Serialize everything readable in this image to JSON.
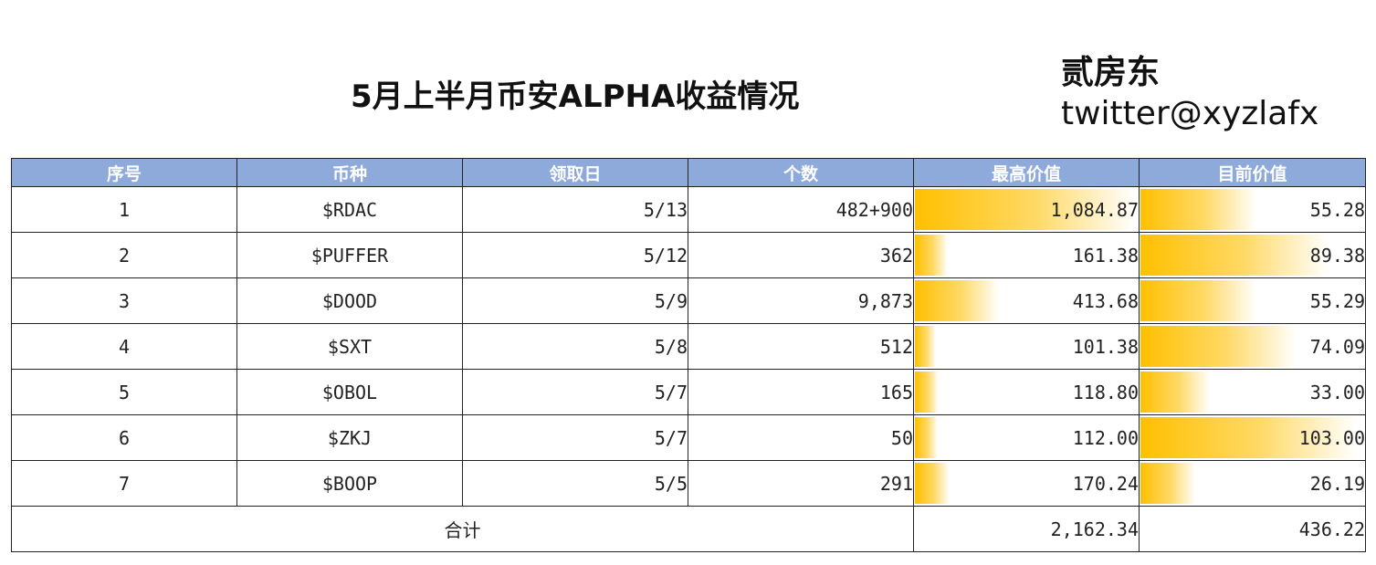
{
  "title": "5月上半月币安ALPHA收益情况",
  "author": "贰房东",
  "handle": "twitter@xyzlafx",
  "headers": [
    "序号",
    "币种",
    "领取日",
    "个数",
    "最高价值",
    "目前价值"
  ],
  "max_bar_ref": 1084.87,
  "cur_bar_ref": 103.0,
  "rows": [
    {
      "no": "1",
      "coin": "$RDAC",
      "date": "5/13",
      "qty": "482+900",
      "max_value": "1,084.87",
      "max_num": 1084.87,
      "cur_value": "55.28",
      "cur_num": 55.28
    },
    {
      "no": "2",
      "coin": "$PUFFER",
      "date": "5/12",
      "qty": "362",
      "max_value": "161.38",
      "max_num": 161.38,
      "cur_value": "89.38",
      "cur_num": 89.38
    },
    {
      "no": "3",
      "coin": "$DOOD",
      "date": "5/9",
      "qty": "9,873",
      "max_value": "413.68",
      "max_num": 413.68,
      "cur_value": "55.29",
      "cur_num": 55.29
    },
    {
      "no": "4",
      "coin": "$SXT",
      "date": "5/8",
      "qty": "512",
      "max_value": "101.38",
      "max_num": 101.38,
      "cur_value": "74.09",
      "cur_num": 74.09
    },
    {
      "no": "5",
      "coin": "$OBOL",
      "date": "5/7",
      "qty": "165",
      "max_value": "118.80",
      "max_num": 118.8,
      "cur_value": "33.00",
      "cur_num": 33.0
    },
    {
      "no": "6",
      "coin": "$ZKJ",
      "date": "5/7",
      "qty": "50",
      "max_value": "112.00",
      "max_num": 112.0,
      "cur_value": "103.00",
      "cur_num": 103.0
    },
    {
      "no": "7",
      "coin": "$BOOP",
      "date": "5/5",
      "qty": "291",
      "max_value": "170.24",
      "max_num": 170.24,
      "cur_value": "26.19",
      "cur_num": 26.19
    }
  ],
  "total": {
    "label": "合计",
    "max_value": "2,162.34",
    "cur_value": "436.22"
  },
  "colors": {
    "header_bg": "#8eaadb",
    "bar": "#ffc000"
  }
}
